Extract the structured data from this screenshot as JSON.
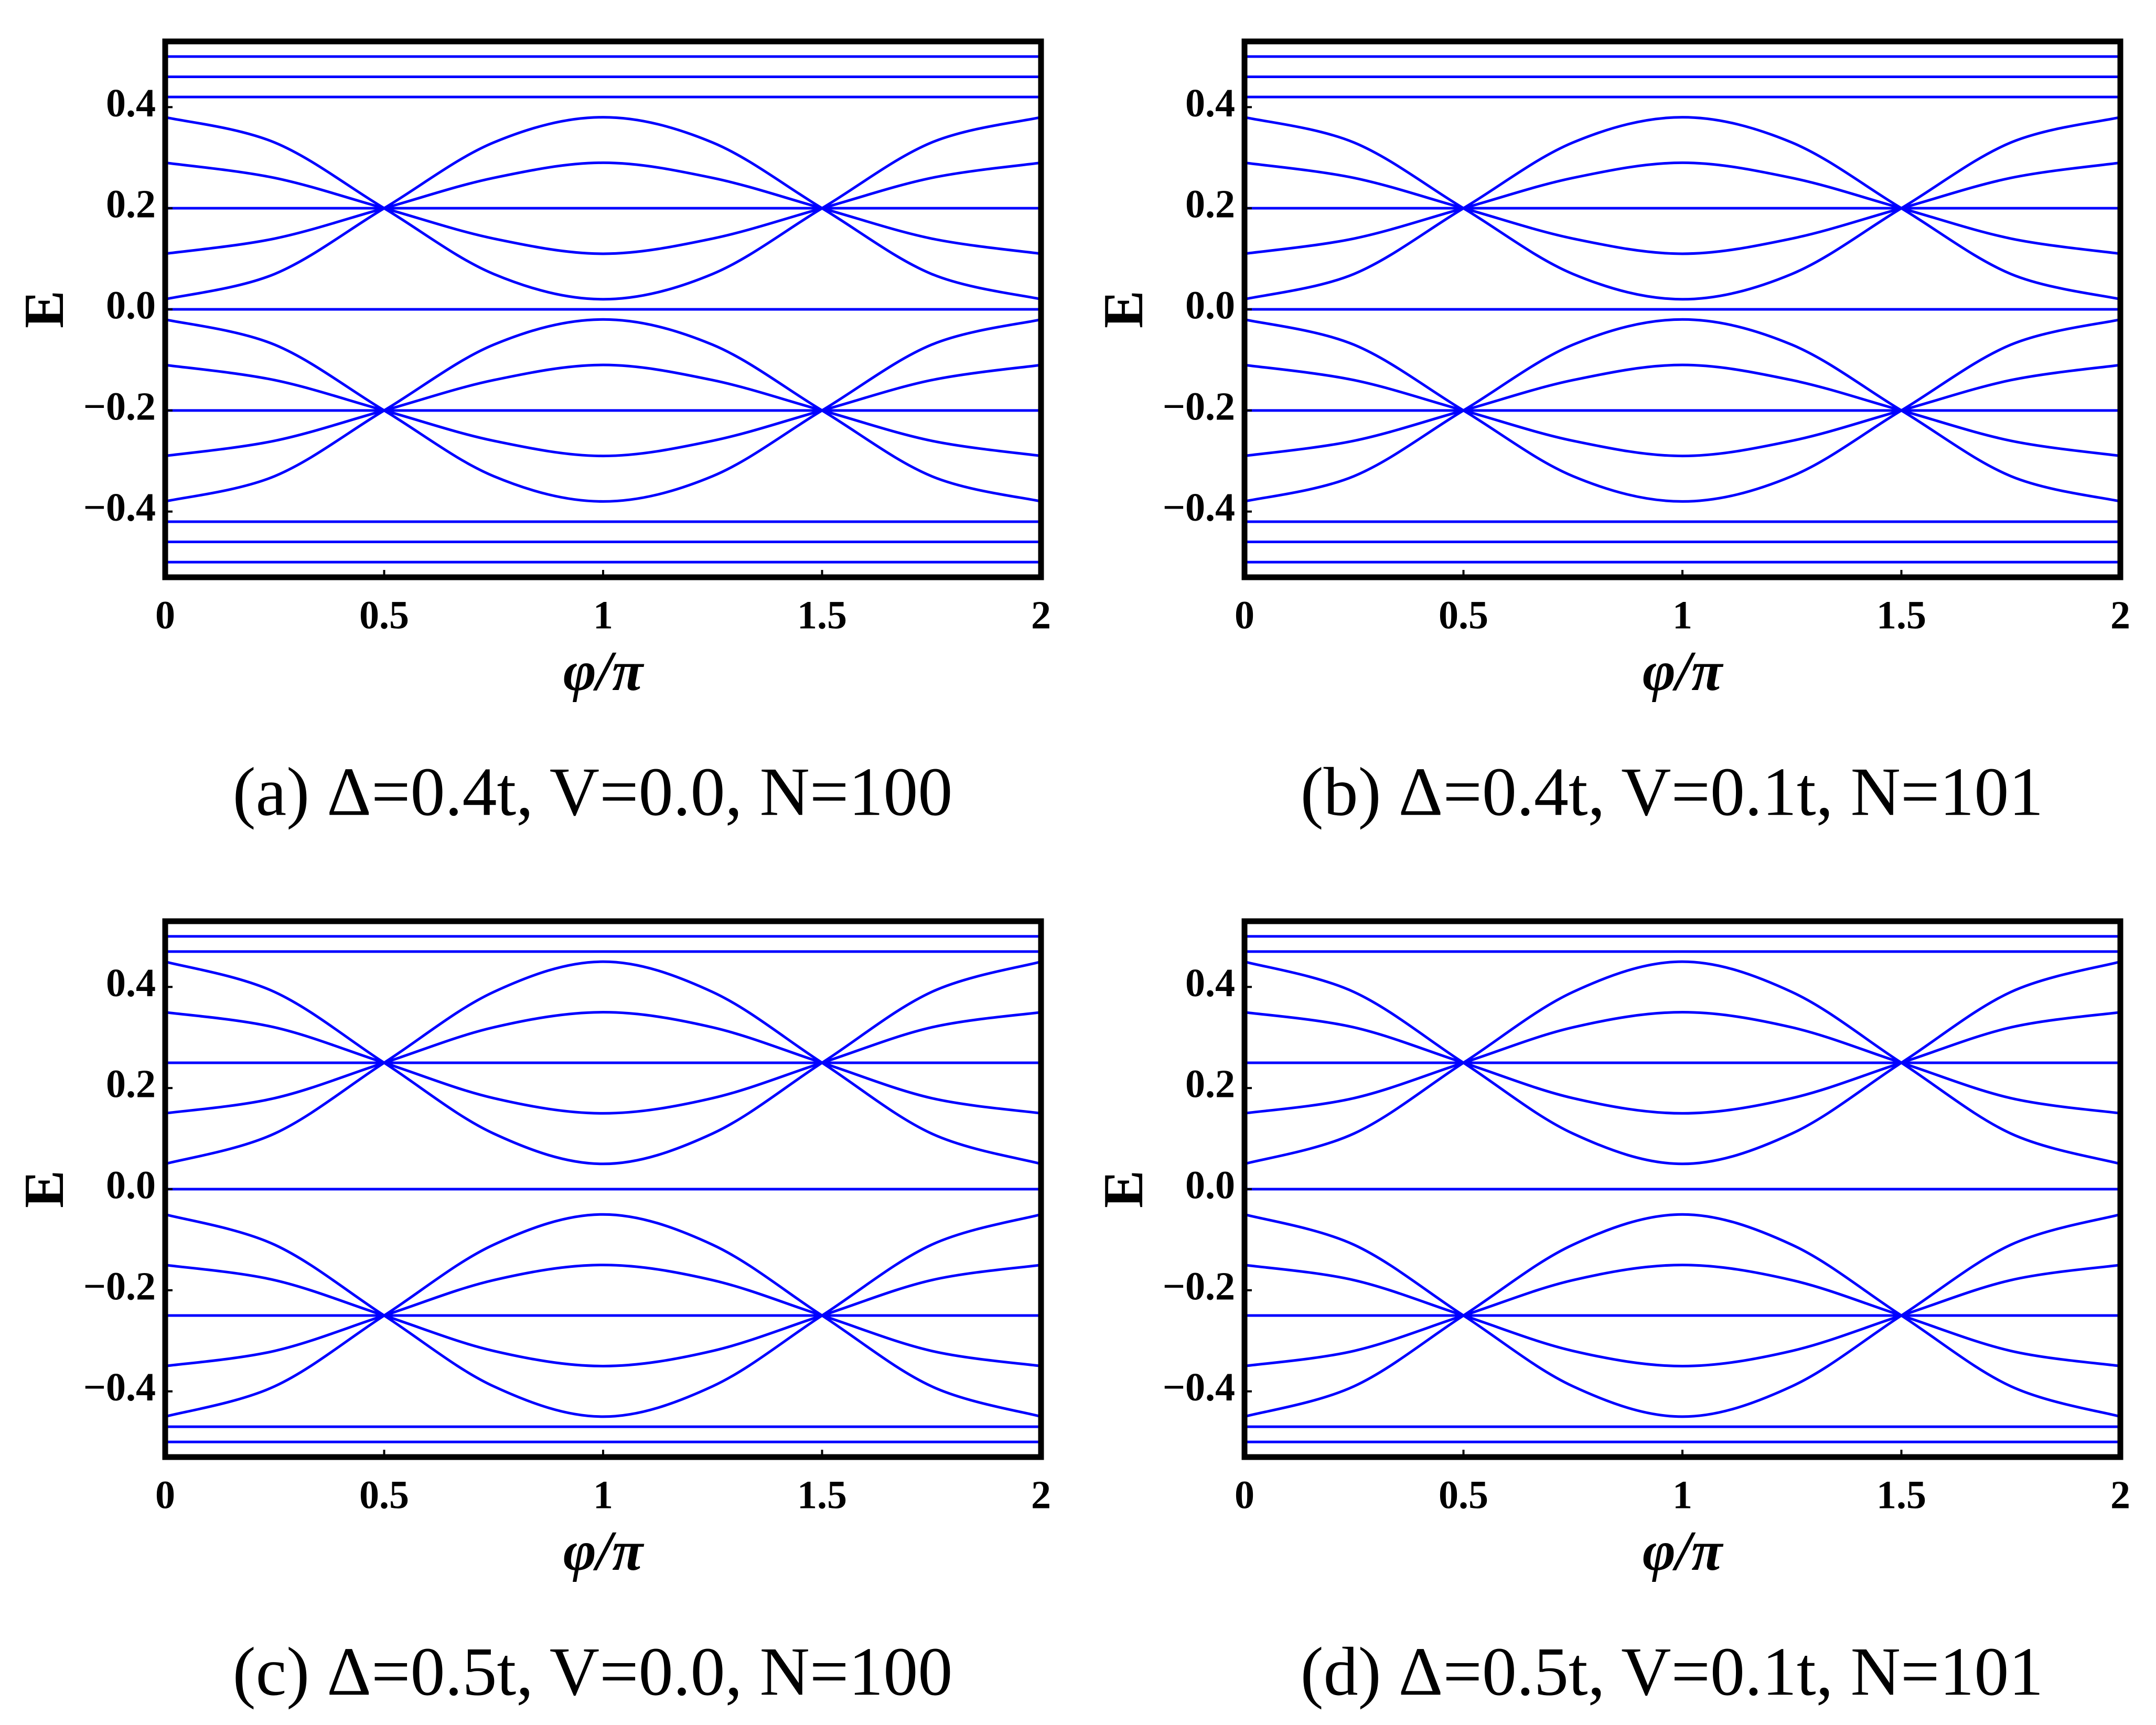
{
  "chart_data": [
    {
      "type": "line",
      "caption": "(a) Δ=0.4t, V=0.0, N=100",
      "xlabel": "φ/π",
      "ylabel": "E",
      "color": "#0000ff",
      "grid": false,
      "xlim": [
        0,
        2
      ],
      "ylim": [
        -0.53,
        0.53
      ],
      "xticks": [
        0,
        0.5,
        1,
        1.5,
        2
      ],
      "yticks": [
        {
          "value": -0.4,
          "label": "−0.4"
        },
        {
          "value": -0.2,
          "label": "−0.2"
        },
        {
          "value": 0,
          "label": "0.0"
        },
        {
          "value": 0.2,
          "label": "0.2"
        },
        {
          "value": 0.4,
          "label": "0.4"
        }
      ],
      "x": [
        0,
        0.25,
        0.5,
        0.75,
        1,
        1.25,
        1.5,
        1.75,
        2
      ],
      "series": [
        {
          "values": [
            0.38,
            0.33,
            0.2,
            0.07,
            0.02,
            0.07,
            0.2,
            0.33,
            0.38
          ]
        },
        {
          "values": [
            0.29,
            0.26,
            0.2,
            0.14,
            0.11,
            0.14,
            0.2,
            0.26,
            0.29
          ]
        },
        {
          "values": [
            0.2,
            0.2,
            0.2,
            0.2,
            0.2,
            0.2,
            0.2,
            0.2,
            0.2
          ]
        },
        {
          "values": [
            0.11,
            0.14,
            0.2,
            0.26,
            0.29,
            0.26,
            0.2,
            0.14,
            0.11
          ]
        },
        {
          "values": [
            0.02,
            0.07,
            0.2,
            0.33,
            0.38,
            0.33,
            0.2,
            0.07,
            0.02
          ]
        },
        {
          "values": [
            -0.38,
            -0.33,
            -0.2,
            -0.07,
            -0.02,
            -0.07,
            -0.2,
            -0.33,
            -0.38
          ]
        },
        {
          "values": [
            -0.29,
            -0.26,
            -0.2,
            -0.14,
            -0.11,
            -0.14,
            -0.2,
            -0.26,
            -0.29
          ]
        },
        {
          "values": [
            -0.2,
            -0.2,
            -0.2,
            -0.2,
            -0.2,
            -0.2,
            -0.2,
            -0.2,
            -0.2
          ]
        },
        {
          "values": [
            -0.11,
            -0.14,
            -0.2,
            -0.26,
            -0.29,
            -0.26,
            -0.2,
            -0.14,
            -0.11
          ]
        },
        {
          "values": [
            -0.02,
            -0.07,
            -0.2,
            -0.33,
            -0.38,
            -0.33,
            -0.2,
            -0.07,
            -0.02
          ]
        },
        {
          "values": [
            0.42,
            0.42,
            0.42,
            0.42,
            0.42,
            0.42,
            0.42,
            0.42,
            0.42
          ]
        },
        {
          "values": [
            0.46,
            0.46,
            0.46,
            0.46,
            0.46,
            0.46,
            0.46,
            0.46,
            0.46
          ]
        },
        {
          "values": [
            0.5,
            0.5,
            0.5,
            0.5,
            0.5,
            0.5,
            0.5,
            0.5,
            0.5
          ]
        },
        {
          "values": [
            -0.42,
            -0.42,
            -0.42,
            -0.42,
            -0.42,
            -0.42,
            -0.42,
            -0.42,
            -0.42
          ]
        },
        {
          "values": [
            -0.46,
            -0.46,
            -0.46,
            -0.46,
            -0.46,
            -0.46,
            -0.46,
            -0.46,
            -0.46
          ]
        },
        {
          "values": [
            -0.5,
            -0.5,
            -0.5,
            -0.5,
            -0.5,
            -0.5,
            -0.5,
            -0.5,
            -0.5
          ]
        },
        {
          "values": [
            0,
            0,
            0,
            0,
            0,
            0,
            0,
            0,
            0
          ]
        }
      ]
    },
    {
      "type": "line",
      "caption": "(b) Δ=0.4t, V=0.1t, N=101",
      "xlabel": "φ/π",
      "ylabel": "E",
      "color": "#0000ff",
      "grid": false,
      "xlim": [
        0,
        2
      ],
      "ylim": [
        -0.53,
        0.53
      ],
      "xticks": [
        0,
        0.5,
        1,
        1.5,
        2
      ],
      "yticks": [
        {
          "value": -0.4,
          "label": "−0.4"
        },
        {
          "value": -0.2,
          "label": "−0.2"
        },
        {
          "value": 0,
          "label": "0.0"
        },
        {
          "value": 0.2,
          "label": "0.2"
        },
        {
          "value": 0.4,
          "label": "0.4"
        }
      ],
      "x": [
        0,
        0.25,
        0.5,
        0.75,
        1,
        1.25,
        1.5,
        1.75,
        2
      ],
      "series": [
        {
          "values": [
            0.38,
            0.33,
            0.2,
            0.07,
            0.02,
            0.07,
            0.2,
            0.33,
            0.38
          ]
        },
        {
          "values": [
            0.29,
            0.26,
            0.2,
            0.14,
            0.11,
            0.14,
            0.2,
            0.26,
            0.29
          ]
        },
        {
          "values": [
            0.2,
            0.2,
            0.2,
            0.2,
            0.2,
            0.2,
            0.2,
            0.2,
            0.2
          ]
        },
        {
          "values": [
            0.11,
            0.14,
            0.2,
            0.26,
            0.29,
            0.26,
            0.2,
            0.14,
            0.11
          ]
        },
        {
          "values": [
            0.02,
            0.07,
            0.2,
            0.33,
            0.38,
            0.33,
            0.2,
            0.07,
            0.02
          ]
        },
        {
          "values": [
            -0.38,
            -0.33,
            -0.2,
            -0.07,
            -0.02,
            -0.07,
            -0.2,
            -0.33,
            -0.38
          ]
        },
        {
          "values": [
            -0.29,
            -0.26,
            -0.2,
            -0.14,
            -0.11,
            -0.14,
            -0.2,
            -0.26,
            -0.29
          ]
        },
        {
          "values": [
            -0.2,
            -0.2,
            -0.2,
            -0.2,
            -0.2,
            -0.2,
            -0.2,
            -0.2,
            -0.2
          ]
        },
        {
          "values": [
            -0.11,
            -0.14,
            -0.2,
            -0.26,
            -0.29,
            -0.26,
            -0.2,
            -0.14,
            -0.11
          ]
        },
        {
          "values": [
            -0.02,
            -0.07,
            -0.2,
            -0.33,
            -0.38,
            -0.33,
            -0.2,
            -0.07,
            -0.02
          ]
        },
        {
          "values": [
            0.42,
            0.42,
            0.42,
            0.42,
            0.42,
            0.42,
            0.42,
            0.42,
            0.42
          ]
        },
        {
          "values": [
            0.46,
            0.46,
            0.46,
            0.46,
            0.46,
            0.46,
            0.46,
            0.46,
            0.46
          ]
        },
        {
          "values": [
            0.5,
            0.5,
            0.5,
            0.5,
            0.5,
            0.5,
            0.5,
            0.5,
            0.5
          ]
        },
        {
          "values": [
            -0.42,
            -0.42,
            -0.42,
            -0.42,
            -0.42,
            -0.42,
            -0.42,
            -0.42,
            -0.42
          ]
        },
        {
          "values": [
            -0.46,
            -0.46,
            -0.46,
            -0.46,
            -0.46,
            -0.46,
            -0.46,
            -0.46,
            -0.46
          ]
        },
        {
          "values": [
            -0.5,
            -0.5,
            -0.5,
            -0.5,
            -0.5,
            -0.5,
            -0.5,
            -0.5,
            -0.5
          ]
        },
        {
          "values": [
            0,
            0,
            0,
            0,
            0,
            0,
            0,
            0,
            0
          ]
        }
      ]
    },
    {
      "type": "line",
      "caption": "(c) Δ=0.5t, V=0.0, N=100",
      "xlabel": "φ/π",
      "ylabel": "E",
      "color": "#0000ff",
      "grid": false,
      "xlim": [
        0,
        2
      ],
      "ylim": [
        -0.53,
        0.53
      ],
      "xticks": [
        0,
        0.5,
        1,
        1.5,
        2
      ],
      "yticks": [
        {
          "value": -0.4,
          "label": "−0.4"
        },
        {
          "value": -0.2,
          "label": "−0.2"
        },
        {
          "value": 0,
          "label": "0.0"
        },
        {
          "value": 0.2,
          "label": "0.2"
        },
        {
          "value": 0.4,
          "label": "0.4"
        }
      ],
      "x": [
        0,
        0.25,
        0.5,
        0.75,
        1,
        1.25,
        1.5,
        1.75,
        2
      ],
      "series": [
        {
          "values": [
            0.45,
            0.39,
            0.25,
            0.11,
            0.05,
            0.11,
            0.25,
            0.39,
            0.45
          ]
        },
        {
          "values": [
            0.35,
            0.32,
            0.25,
            0.18,
            0.15,
            0.18,
            0.25,
            0.32,
            0.35
          ]
        },
        {
          "values": [
            0.25,
            0.25,
            0.25,
            0.25,
            0.25,
            0.25,
            0.25,
            0.25,
            0.25
          ]
        },
        {
          "values": [
            0.15,
            0.18,
            0.25,
            0.32,
            0.35,
            0.32,
            0.25,
            0.18,
            0.15
          ]
        },
        {
          "values": [
            0.05,
            0.11,
            0.25,
            0.39,
            0.45,
            0.39,
            0.25,
            0.11,
            0.05
          ]
        },
        {
          "values": [
            -0.45,
            -0.39,
            -0.25,
            -0.11,
            -0.05,
            -0.11,
            -0.25,
            -0.39,
            -0.45
          ]
        },
        {
          "values": [
            -0.35,
            -0.32,
            -0.25,
            -0.18,
            -0.15,
            -0.18,
            -0.25,
            -0.32,
            -0.35
          ]
        },
        {
          "values": [
            -0.25,
            -0.25,
            -0.25,
            -0.25,
            -0.25,
            -0.25,
            -0.25,
            -0.25,
            -0.25
          ]
        },
        {
          "values": [
            -0.15,
            -0.18,
            -0.25,
            -0.32,
            -0.35,
            -0.32,
            -0.25,
            -0.18,
            -0.15
          ]
        },
        {
          "values": [
            -0.05,
            -0.11,
            -0.25,
            -0.39,
            -0.45,
            -0.39,
            -0.25,
            -0.11,
            -0.05
          ]
        },
        {
          "values": [
            0.47,
            0.47,
            0.47,
            0.47,
            0.47,
            0.47,
            0.47,
            0.47,
            0.47
          ]
        },
        {
          "values": [
            0.5,
            0.5,
            0.5,
            0.5,
            0.5,
            0.5,
            0.5,
            0.5,
            0.5
          ]
        },
        {
          "values": [
            -0.47,
            -0.47,
            -0.47,
            -0.47,
            -0.47,
            -0.47,
            -0.47,
            -0.47,
            -0.47
          ]
        },
        {
          "values": [
            -0.5,
            -0.5,
            -0.5,
            -0.5,
            -0.5,
            -0.5,
            -0.5,
            -0.5,
            -0.5
          ]
        },
        {
          "values": [
            0,
            0,
            0,
            0,
            0,
            0,
            0,
            0,
            0
          ]
        }
      ]
    },
    {
      "type": "line",
      "caption": "(d) Δ=0.5t, V=0.1t, N=101",
      "xlabel": "φ/π",
      "ylabel": "E",
      "color": "#0000ff",
      "grid": false,
      "xlim": [
        0,
        2
      ],
      "ylim": [
        -0.53,
        0.53
      ],
      "xticks": [
        0,
        0.5,
        1,
        1.5,
        2
      ],
      "yticks": [
        {
          "value": -0.4,
          "label": "−0.4"
        },
        {
          "value": -0.2,
          "label": "−0.2"
        },
        {
          "value": 0,
          "label": "0.0"
        },
        {
          "value": 0.2,
          "label": "0.2"
        },
        {
          "value": 0.4,
          "label": "0.4"
        }
      ],
      "x": [
        0,
        0.25,
        0.5,
        0.75,
        1,
        1.25,
        1.5,
        1.75,
        2
      ],
      "series": [
        {
          "values": [
            0.45,
            0.39,
            0.25,
            0.11,
            0.05,
            0.11,
            0.25,
            0.39,
            0.45
          ]
        },
        {
          "values": [
            0.35,
            0.32,
            0.25,
            0.18,
            0.15,
            0.18,
            0.25,
            0.32,
            0.35
          ]
        },
        {
          "values": [
            0.25,
            0.25,
            0.25,
            0.25,
            0.25,
            0.25,
            0.25,
            0.25,
            0.25
          ]
        },
        {
          "values": [
            0.15,
            0.18,
            0.25,
            0.32,
            0.35,
            0.32,
            0.25,
            0.18,
            0.15
          ]
        },
        {
          "values": [
            0.05,
            0.11,
            0.25,
            0.39,
            0.45,
            0.39,
            0.25,
            0.11,
            0.05
          ]
        },
        {
          "values": [
            -0.45,
            -0.39,
            -0.25,
            -0.11,
            -0.05,
            -0.11,
            -0.25,
            -0.39,
            -0.45
          ]
        },
        {
          "values": [
            -0.35,
            -0.32,
            -0.25,
            -0.18,
            -0.15,
            -0.18,
            -0.25,
            -0.32,
            -0.35
          ]
        },
        {
          "values": [
            -0.25,
            -0.25,
            -0.25,
            -0.25,
            -0.25,
            -0.25,
            -0.25,
            -0.25,
            -0.25
          ]
        },
        {
          "values": [
            -0.15,
            -0.18,
            -0.25,
            -0.32,
            -0.35,
            -0.32,
            -0.25,
            -0.18,
            -0.15
          ]
        },
        {
          "values": [
            -0.05,
            -0.11,
            -0.25,
            -0.39,
            -0.45,
            -0.39,
            -0.25,
            -0.11,
            -0.05
          ]
        },
        {
          "values": [
            0.47,
            0.47,
            0.47,
            0.47,
            0.47,
            0.47,
            0.47,
            0.47,
            0.47
          ]
        },
        {
          "values": [
            0.5,
            0.5,
            0.5,
            0.5,
            0.5,
            0.5,
            0.5,
            0.5,
            0.5
          ]
        },
        {
          "values": [
            -0.47,
            -0.47,
            -0.47,
            -0.47,
            -0.47,
            -0.47,
            -0.47,
            -0.47,
            -0.47
          ]
        },
        {
          "values": [
            -0.5,
            -0.5,
            -0.5,
            -0.5,
            -0.5,
            -0.5,
            -0.5,
            -0.5,
            -0.5
          ]
        },
        {
          "values": [
            0,
            0,
            0,
            0,
            0,
            0,
            0,
            0,
            0
          ]
        }
      ]
    }
  ]
}
